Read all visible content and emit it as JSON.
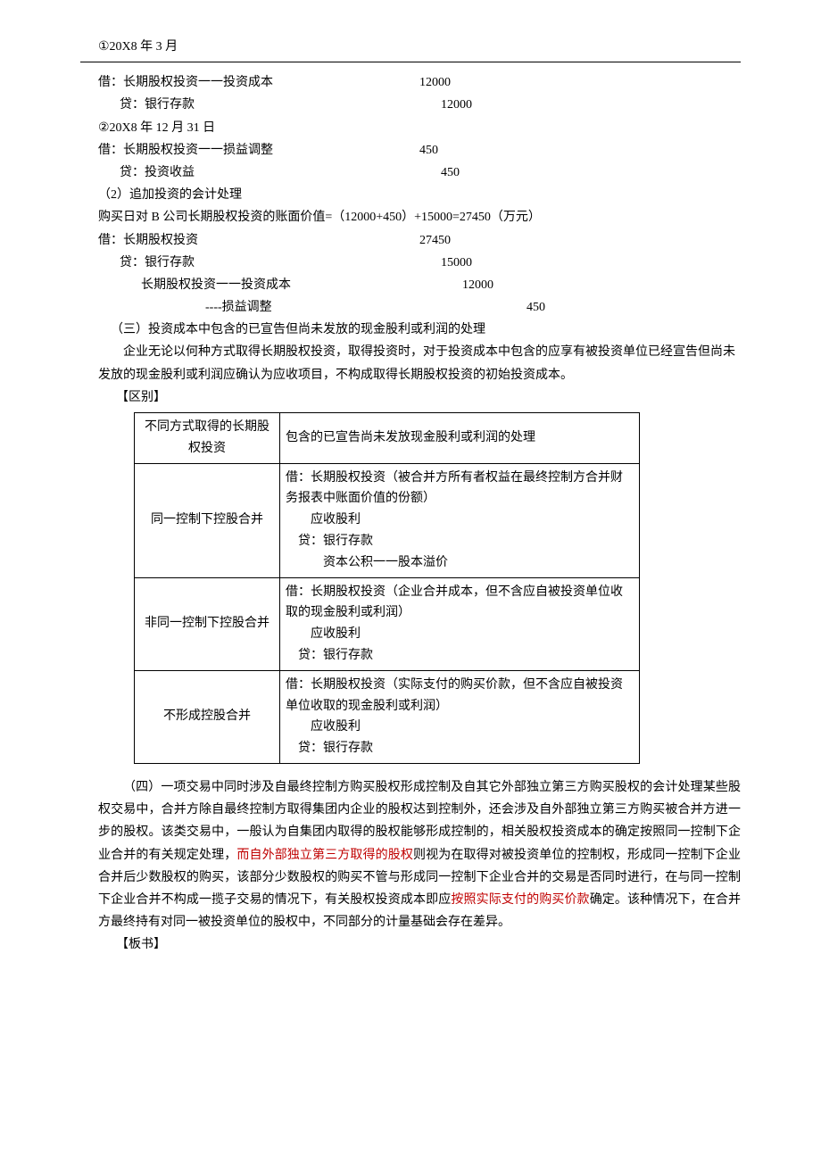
{
  "header": "①20X8 年 3 月",
  "entries1": [
    {
      "label": "借：长期股权投资一一投资成本",
      "value": "12000",
      "indent": 0
    },
    {
      "label": "贷：银行存款",
      "value": "12000",
      "indent": 1
    }
  ],
  "line2": "②20X8 年 12 月 31 日",
  "entries2": [
    {
      "label": "借：长期股权投资一一损益调整",
      "value": "450",
      "indent": 0
    },
    {
      "label": "贷：投资收益",
      "value": "450",
      "indent": 1
    }
  ],
  "line3": "（2）追加投资的会计处理",
  "line4": "购买日对 B 公司长期股权投资的账面价值=（12000+450）+15000=27450（万元）",
  "entries3": [
    {
      "label": "借：长期股权投资",
      "value": "27450",
      "indent": 0
    },
    {
      "label": "贷：银行存款",
      "value": "15000",
      "indent": 1
    },
    {
      "label": "长期股权投资一一投资成本",
      "value": "12000",
      "indent": 2
    },
    {
      "label": "----损益调整",
      "value": "450",
      "indent": 3
    }
  ],
  "sec3_title": "（三）投资成本中包含的已宣告但尚未发放的现金股利或利润的处理",
  "sec3_body": "企业无论以何种方式取得长期股权投资，取得投资时，对于投资成本中包含的应享有被投资单位已经宣告但尚未发放的现金股利或利润应确认为应收项目，不构成取得长期股权投资的初始投资成本。",
  "distinguish_label": "【区别】",
  "table": {
    "header": [
      "不同方式取得的长期股权投资",
      "包含的已宣告尚未发放现金股利或利润的处理"
    ],
    "rows": [
      {
        "col1": "同一控制下控股合并",
        "col2": "借：长期股权投资（被合并方所有者权益在最终控制方合并财务报表中账面价值的份额）\n　　应收股利\n　贷：银行存款\n　　　资本公积一一股本溢价"
      },
      {
        "col1": "非同一控制下控股合并",
        "col2": "借：长期股权投资（企业合并成本，但不含应自被投资单位收取的现金股利或利润）\n　　应收股利\n　贷：银行存款"
      },
      {
        "col1": "不形成控股合并",
        "col2": "借：长期股权投资（实际支付的购买价款，但不含应自被投资单位收取的现金股利或利润）\n　　应收股利\n　贷：银行存款"
      }
    ]
  },
  "sec4_pre": "（四）一项交易中同时涉及自最终控制方购买股权形成控制及自其它外部独立第三方购买股权的会计处理某些股权交易中，合并方除自最终控制方取得集团内企业的股权达到控制外，还会涉及自外部独立第三方购买被合并方进一步的股权。该类交易中，一般认为自集团内取得的股权能够形成控制的，相关股权投资成本的确定按照同一控制下企业合并的有关规定处理，",
  "sec4_red1": "而自外部独立第三方取得的股权",
  "sec4_mid": "则视为在取得对被投资单位的控制权，形成同一控制下企业合并后少数股权的购买，该部分少数股权的购买不管与形成同一控制下企业合并的交易是否同时进行，在与同一控制下企业合并不构成一揽子交易的情况下，有关股权投资成本即应",
  "sec4_red2": "按照实际支付的购买价款",
  "sec4_post": "确定。该种情况下，在合并方最终持有对同一被投资单位的股权中，不同部分的计量基础会存在差异。",
  "board_label": "【板书】"
}
